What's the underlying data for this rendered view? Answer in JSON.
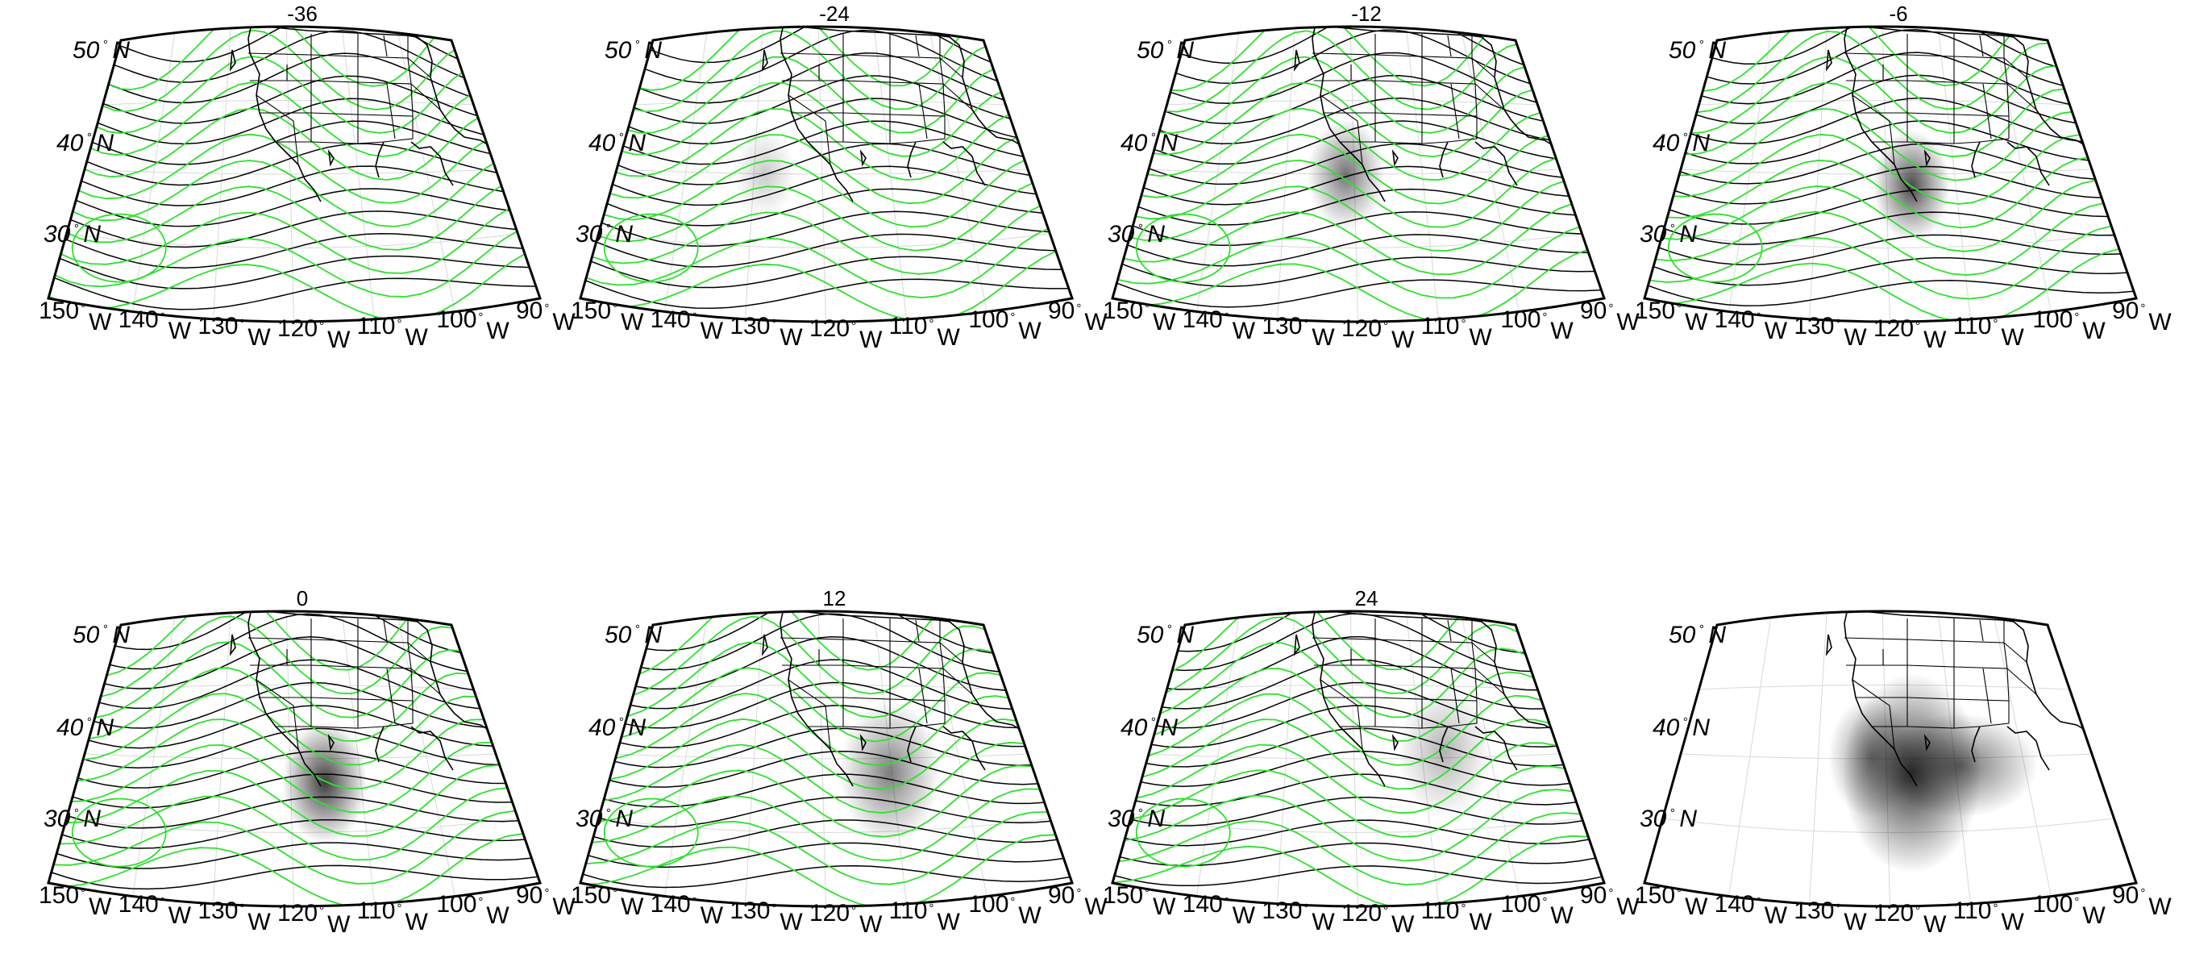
{
  "figure": {
    "lat_labels": [
      "50",
      "40",
      "30"
    ],
    "lat_suffix": "N",
    "lon_labels": [
      "150",
      "140",
      "130",
      "120",
      "110",
      "100",
      "90"
    ],
    "lon_suffix": "W",
    "degree_symbol": "°",
    "contour_colors": {
      "first_field": "#2ee02e",
      "second_field": "#000000",
      "shading": "#000000"
    },
    "panels": [
      {
        "title": "-36",
        "intensity": 0.0,
        "center": [
          0.3,
          0.42
        ],
        "spread": 0.1,
        "contours": true
      },
      {
        "title": "-24",
        "intensity": 0.25,
        "center": [
          0.36,
          0.5
        ],
        "spread": 0.08,
        "contours": true
      },
      {
        "title": "-12",
        "intensity": 0.65,
        "center": [
          0.48,
          0.5
        ],
        "spread": 0.1,
        "contours": true
      },
      {
        "title": "-6",
        "intensity": 0.85,
        "center": [
          0.56,
          0.54
        ],
        "spread": 0.1,
        "contours": true
      },
      {
        "title": "0",
        "intensity": 0.9,
        "center": [
          0.58,
          0.58
        ],
        "spread": 0.11,
        "contours": true
      },
      {
        "title": "12",
        "intensity": 0.6,
        "center": [
          0.66,
          0.55
        ],
        "spread": 0.13,
        "contours": true
      },
      {
        "title": "24",
        "intensity": 0.35,
        "center": [
          0.72,
          0.48
        ],
        "spread": 0.12,
        "contours": true
      },
      {
        "title": "",
        "intensity": 0.95,
        "center": [
          0.56,
          0.55
        ],
        "spread": 0.18,
        "contours": false
      }
    ]
  }
}
